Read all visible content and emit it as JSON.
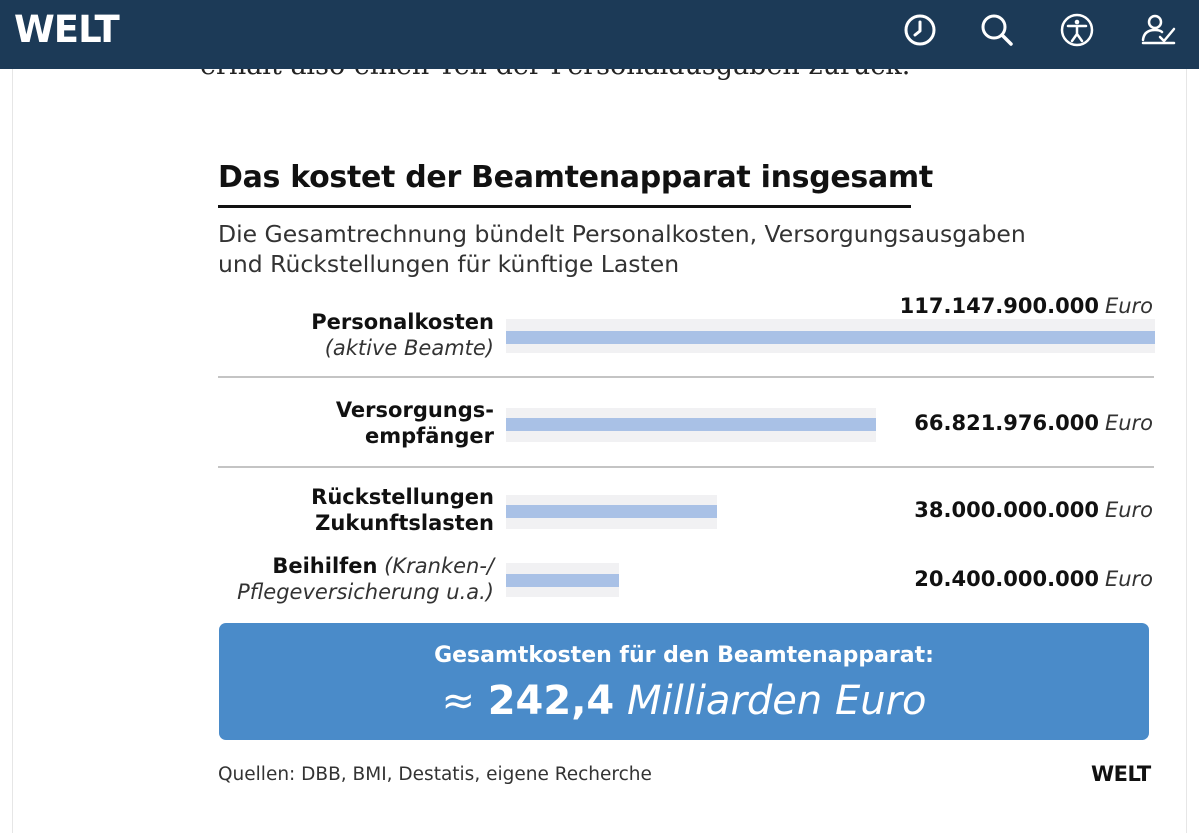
{
  "header": {
    "logo": "WELT",
    "icons": [
      "clock-icon",
      "search-icon",
      "accessibility-icon",
      "signature-icon"
    ]
  },
  "article": {
    "cut_text": "erhält also einen Teil der Personalausgaben zurück."
  },
  "colors": {
    "header_bg": "#1c3a57",
    "bar": "#a9c1e6",
    "track": "#f1f1f3",
    "total_box": "#4a8bc9"
  },
  "chart_data": {
    "type": "bar",
    "title": "Das kostet der Beamtenapparat insgesamt",
    "subtitle_line1": "Die Gesamtrechnung bündelt Personalkosten, Versorgungsausgaben",
    "subtitle_line2": "und Rückstellungen für künftige Lasten",
    "unit": "Euro",
    "rows": [
      {
        "label_bold": "Personalkosten",
        "label_italic": "(aktive Beamte)",
        "value": 117147900000,
        "value_text": "117.147.900.000"
      },
      {
        "label_bold": "Versorgungs-",
        "label_bold2": "empfänger",
        "value": 66821976000,
        "value_text": "66.821.976.000"
      },
      {
        "label_bold": "Rückstellungen",
        "label_bold2": "Zukunftslasten",
        "value": 38000000000,
        "value_text": "38.000.000.000"
      },
      {
        "label_bold": "Beihilfen",
        "label_italic": "(Kranken-/",
        "label_italic2": "Pflegeversicherung u.a.)",
        "value": 20400000000,
        "value_text": "20.400.000.000"
      }
    ],
    "xlim": [
      0,
      117147900000
    ],
    "total": {
      "label": "Gesamtkosten für den Beamtenapparat:",
      "prefix": "≈",
      "value": "242,4",
      "unit": "Milliarden Euro"
    },
    "source": "Quellen: DBB, BMI, Destatis, eigene Recherche",
    "brand": "WELT"
  }
}
